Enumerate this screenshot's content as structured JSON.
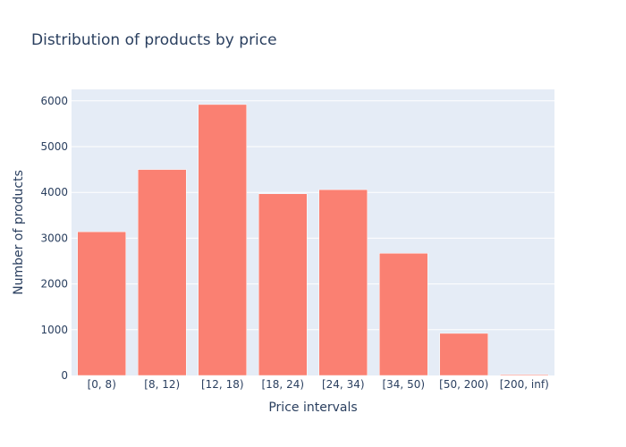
{
  "chart_data": {
    "type": "bar",
    "title": "Distribution of products by price",
    "xlabel": "Price intervals",
    "ylabel": "Number of products",
    "categories": [
      "[0, 8)",
      "[8, 12)",
      "[12, 18)",
      "[18, 24)",
      "[24, 34)",
      "[34, 50)",
      "[50, 200)",
      "[200, inf)"
    ],
    "values": [
      3140,
      4500,
      5920,
      3970,
      4060,
      2670,
      920,
      20
    ],
    "ylim": [
      0,
      6250
    ],
    "yticks": [
      0,
      1000,
      2000,
      3000,
      4000,
      5000,
      6000
    ],
    "grid": true,
    "colors": {
      "bar": "#fa8072",
      "plot_background": "#e5ecf6",
      "grid": "#ffffff",
      "text": "#2a3f5f"
    }
  }
}
